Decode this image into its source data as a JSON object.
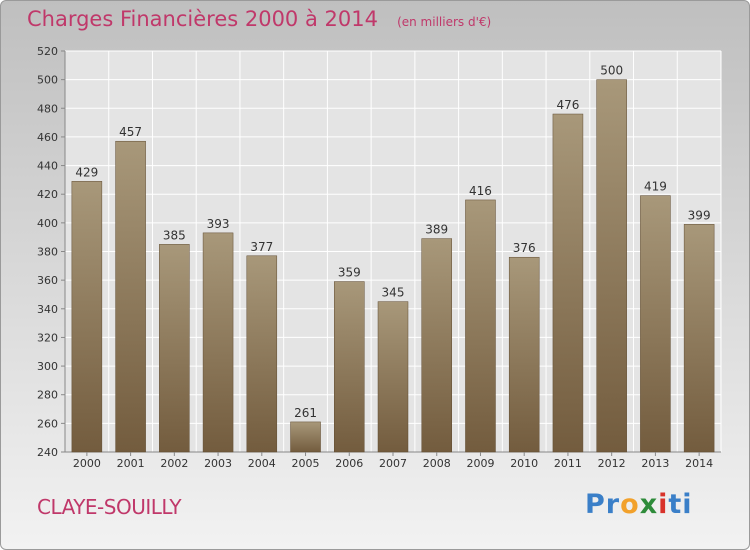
{
  "title": {
    "main": "Charges Financières 2000 à 2014",
    "unit": "(en milliers d'€)"
  },
  "commune": "CLAYE-SOUILLY",
  "logo": {
    "letters": [
      "P",
      "r",
      "o",
      "x",
      "i",
      "t",
      "i"
    ],
    "colors": [
      "#3a7fc8",
      "#3a7fc8",
      "#f2a12b",
      "#2e8b3a",
      "#d8322a",
      "#3a7fc8",
      "#3a7fc8"
    ]
  },
  "colors": {
    "bar_top": "#a8987a",
    "bar_bottom": "#735c3e",
    "axis_text": "#333333",
    "accent": "#c0386a"
  },
  "chart_data": {
    "type": "bar",
    "categories": [
      "2000",
      "2001",
      "2002",
      "2003",
      "2004",
      "2005",
      "2006",
      "2007",
      "2008",
      "2009",
      "2010",
      "2011",
      "2012",
      "2013",
      "2014"
    ],
    "values": [
      429,
      457,
      385,
      393,
      377,
      261,
      359,
      345,
      389,
      416,
      376,
      476,
      500,
      419,
      399
    ],
    "ylim": [
      240,
      520
    ],
    "yticks": [
      240,
      260,
      280,
      300,
      320,
      340,
      360,
      380,
      400,
      420,
      440,
      460,
      480,
      500,
      520
    ],
    "grid": true,
    "data_labels": true
  }
}
